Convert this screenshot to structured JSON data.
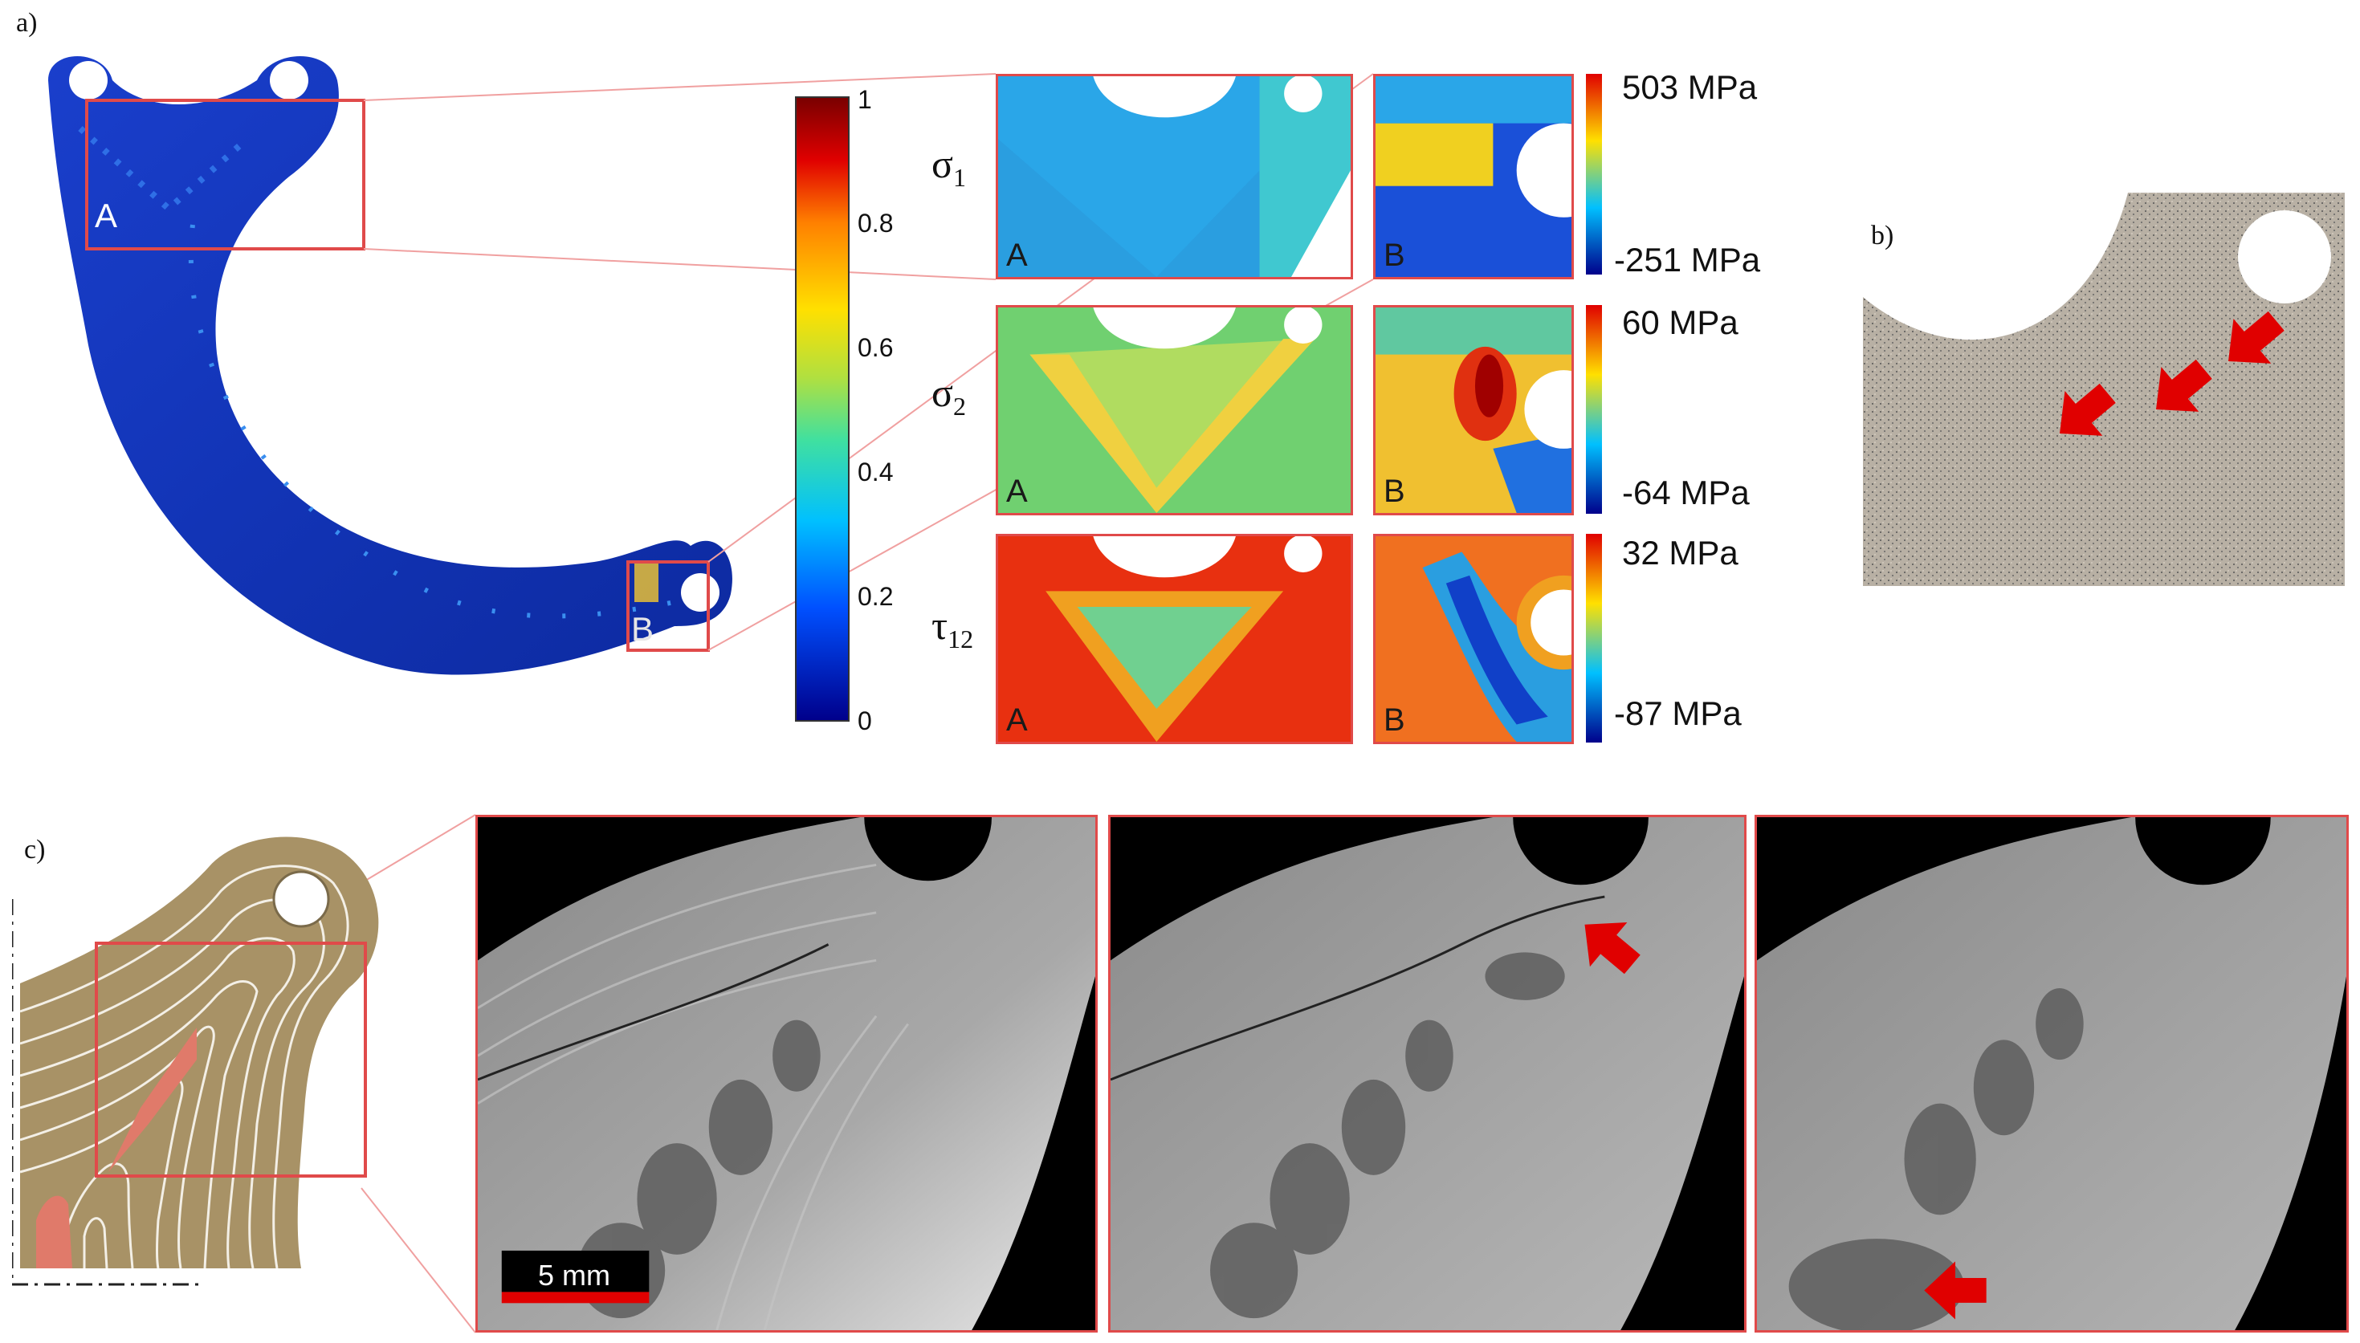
{
  "panels": {
    "a": "a)",
    "b": "b)",
    "c": "c)"
  },
  "part": {
    "region_a": "A",
    "region_b": "B"
  },
  "main_colorbar": {
    "ticks": [
      "1",
      "0.8",
      "0.6",
      "0.4",
      "0.2",
      "0"
    ]
  },
  "rows": [
    {
      "symbol": "σ",
      "sub": "1",
      "max": "503 MPa",
      "min": "-251 MPa"
    },
    {
      "symbol": "σ",
      "sub": "2",
      "max": "60 MPa",
      "min": "-64 MPa"
    },
    {
      "symbol": "τ",
      "sub": "12",
      "max": "32 MPa",
      "min": "-87 MPa"
    }
  ],
  "map_labels": {
    "a": "A",
    "b": "B"
  },
  "scale_bar": "5 mm",
  "colors": {
    "accent": "#e04a4a",
    "part": "#1030b0",
    "arrow": "#e00000"
  }
}
